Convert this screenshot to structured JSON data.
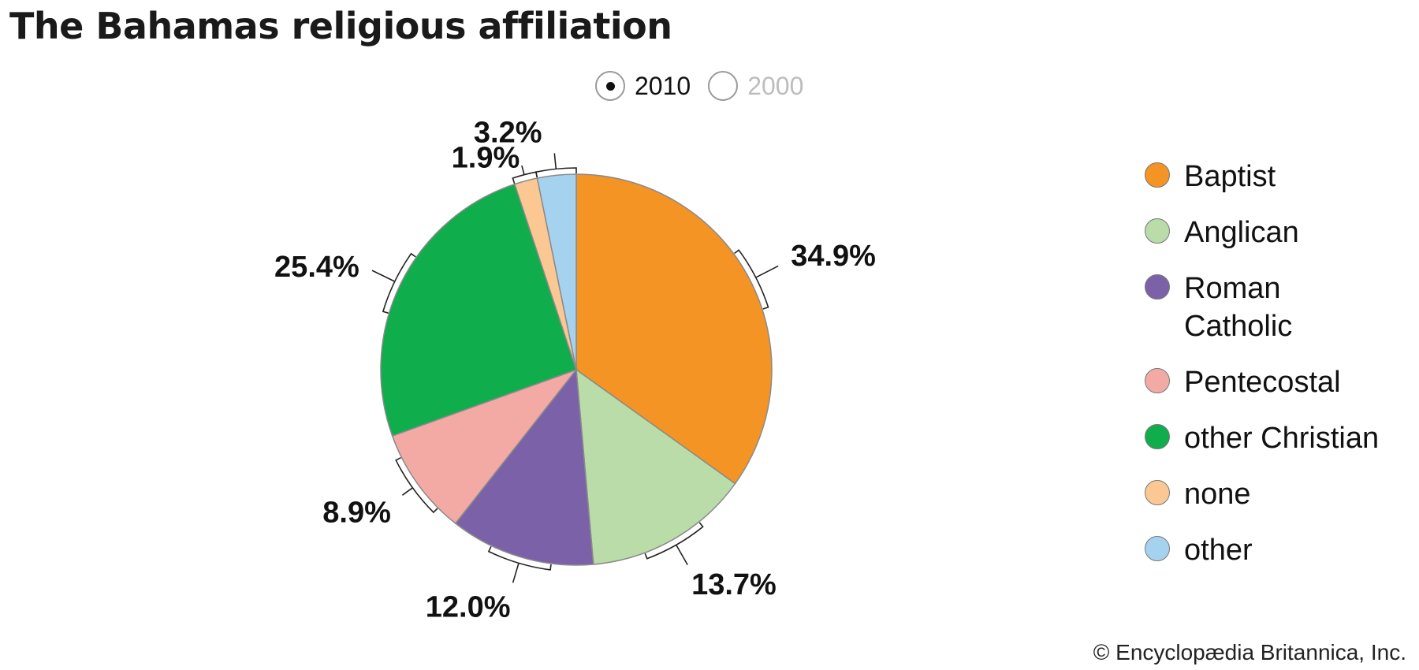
{
  "title": "The Bahamas religious affiliation",
  "year_options": [
    {
      "label": "2010",
      "selected": true
    },
    {
      "label": "2000",
      "selected": false
    }
  ],
  "chart_data": {
    "type": "pie",
    "title": "The Bahamas religious affiliation",
    "slices": [
      {
        "label": "Baptist",
        "value": 34.9,
        "display": "34.9%",
        "color": "#F39425"
      },
      {
        "label": "Anglican",
        "value": 13.7,
        "display": "13.7%",
        "color": "#B9DCA8"
      },
      {
        "label": "Roman Catholic",
        "value": 12.0,
        "display": "12.0%",
        "color": "#7B62A8"
      },
      {
        "label": "Pentecostal",
        "value": 8.9,
        "display": "8.9%",
        "color": "#F3AAA5"
      },
      {
        "label": "other Christian",
        "value": 25.4,
        "display": "25.4%",
        "color": "#10AD4D"
      },
      {
        "label": "none",
        "value": 1.9,
        "display": "1.9%",
        "color": "#FBC893"
      },
      {
        "label": "other",
        "value": 3.2,
        "display": "3.2%",
        "color": "#A4D2EF"
      }
    ],
    "legend_position": "right"
  },
  "copyright": "© Encyclopædia Britannica, Inc."
}
